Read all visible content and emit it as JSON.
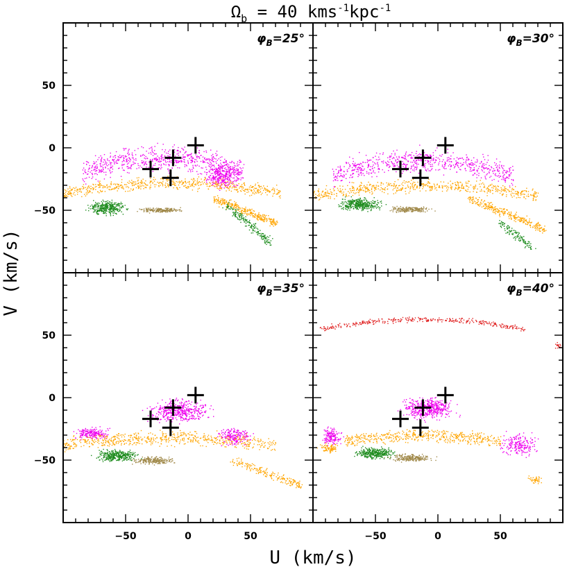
{
  "figure": {
    "title": "Ω_b = 40 kms⁻¹kpc⁻¹",
    "title_main": "Ω",
    "title_sub": "b",
    "title_rest": " = 40  kms",
    "title_sup1": "-1",
    "title_mid": "kpc",
    "title_sup2": "-1",
    "xlabel": "U  (km/s)",
    "ylabel": "V  (km/s)"
  },
  "chart_data": {
    "type": "scatter",
    "layout": "2x2 panels, shared axes",
    "xlim": [
      -100,
      100
    ],
    "ylim": [
      -100,
      100
    ],
    "x_ticks": [
      -50,
      0,
      50
    ],
    "y_ticks": [
      -50,
      0,
      50
    ],
    "x_tick_labels": [
      "−50",
      "0",
      "50"
    ],
    "y_tick_labels": [
      "−50",
      "0",
      "50"
    ],
    "grid": false,
    "colors": {
      "magenta": "#ee00ee",
      "orange": "#ffa500",
      "green": "#1e8c1e",
      "olive": "#a0894a",
      "red": "#e02020",
      "marker": "#000000"
    },
    "observed_groups": [
      {
        "u": 6,
        "v": 2
      },
      {
        "u": -12,
        "v": -8
      },
      {
        "u": -30,
        "v": -17
      },
      {
        "u": -14,
        "v": -24
      }
    ],
    "panels": [
      {
        "label": "φ_B=25°",
        "label_phi": "φ",
        "label_sub": "B",
        "label_rest": "=25°",
        "clusters": [
          {
            "color": "magenta",
            "shape": "arc",
            "u": [
              -85,
              45
            ],
            "v_center": -20,
            "v_half": 14,
            "curve": 12,
            "n": 700
          },
          {
            "color": "magenta",
            "shape": "blob",
            "u": [
              10,
              45
            ],
            "v": [
              -35,
              -10
            ],
            "n": 300
          },
          {
            "color": "orange",
            "shape": "arc",
            "u": [
              -100,
              75
            ],
            "v_center": -36,
            "v_half": 7,
            "curve": 8,
            "n": 600
          },
          {
            "color": "orange",
            "shape": "band",
            "u": [
              20,
              70
            ],
            "v": [
              -60,
              -40
            ],
            "n": 300
          },
          {
            "color": "green",
            "shape": "blob",
            "u": [
              -85,
              -45
            ],
            "v": [
              -55,
              -40
            ],
            "n": 350
          },
          {
            "color": "green",
            "shape": "band",
            "u": [
              30,
              65
            ],
            "v": [
              -75,
              -45
            ],
            "n": 200
          },
          {
            "color": "olive",
            "shape": "blob",
            "u": [
              -45,
              0
            ],
            "v": [
              -52,
              -47
            ],
            "n": 200
          }
        ]
      },
      {
        "label": "φ_B=30°",
        "label_phi": "φ",
        "label_sub": "B",
        "label_rest": "=30°",
        "clusters": [
          {
            "color": "magenta",
            "shape": "arc",
            "u": [
              -85,
              60
            ],
            "v_center": -22,
            "v_half": 13,
            "curve": 12,
            "n": 700
          },
          {
            "color": "orange",
            "shape": "arc",
            "u": [
              -100,
              80
            ],
            "v_center": -38,
            "v_half": 7,
            "curve": 8,
            "n": 600
          },
          {
            "color": "orange",
            "shape": "band",
            "u": [
              25,
              85
            ],
            "v": [
              -65,
              -40
            ],
            "n": 300
          },
          {
            "color": "green",
            "shape": "blob",
            "u": [
              -85,
              -40
            ],
            "v": [
              -52,
              -38
            ],
            "n": 350
          },
          {
            "color": "green",
            "shape": "band",
            "u": [
              50,
              75
            ],
            "v": [
              -80,
              -60
            ],
            "n": 120
          },
          {
            "color": "olive",
            "shape": "blob",
            "u": [
              -45,
              0
            ],
            "v": [
              -52,
              -46
            ],
            "n": 200
          }
        ]
      },
      {
        "label": "φ_B=35°",
        "label_phi": "φ",
        "label_sub": "B",
        "label_rest": "=35°",
        "clusters": [
          {
            "color": "magenta",
            "shape": "blob",
            "u": [
              -40,
              25
            ],
            "v": [
              -22,
              2
            ],
            "n": 450
          },
          {
            "color": "magenta",
            "shape": "blob",
            "u": [
              -95,
              -60
            ],
            "v": [
              -35,
              -22
            ],
            "n": 200
          },
          {
            "color": "magenta",
            "shape": "blob",
            "u": [
              20,
              55
            ],
            "v": [
              -40,
              -22
            ],
            "n": 200
          },
          {
            "color": "orange",
            "shape": "arc",
            "u": [
              -100,
              70
            ],
            "v_center": -38,
            "v_half": 8,
            "curve": 6,
            "n": 600
          },
          {
            "color": "orange",
            "shape": "band",
            "u": [
              35,
              90
            ],
            "v": [
              -70,
              -50
            ],
            "n": 200
          },
          {
            "color": "green",
            "shape": "blob",
            "u": [
              -80,
              -35
            ],
            "v": [
              -52,
              -40
            ],
            "n": 350
          },
          {
            "color": "olive",
            "shape": "blob",
            "u": [
              -50,
              -5
            ],
            "v": [
              -54,
              -46
            ],
            "n": 220
          }
        ]
      },
      {
        "label": "φ_B=40°",
        "label_phi": "φ",
        "label_sub": "B",
        "label_rest": "=40°",
        "clusters": [
          {
            "color": "red",
            "shape": "arc",
            "u": [
              -95,
              70
            ],
            "v_center": 55,
            "v_half": 3,
            "curve": 8,
            "n": 350
          },
          {
            "color": "red",
            "shape": "blob",
            "u": [
              92,
              100
            ],
            "v": [
              38,
              45
            ],
            "n": 20
          },
          {
            "color": "magenta",
            "shape": "blob",
            "u": [
              -35,
              20
            ],
            "v": [
              -20,
              3
            ],
            "n": 450
          },
          {
            "color": "magenta",
            "shape": "blob",
            "u": [
              -95,
              -75
            ],
            "v": [
              -40,
              -22
            ],
            "n": 150
          },
          {
            "color": "magenta",
            "shape": "blob",
            "u": [
              45,
              85
            ],
            "v": [
              -50,
              -25
            ],
            "n": 200
          },
          {
            "color": "orange",
            "shape": "arc",
            "u": [
              -75,
              50
            ],
            "v_center": -35,
            "v_half": 7,
            "curve": 5,
            "n": 500
          },
          {
            "color": "orange",
            "shape": "blob",
            "u": [
              -100,
              -75
            ],
            "v": [
              -45,
              -35
            ],
            "n": 80
          },
          {
            "color": "orange",
            "shape": "blob",
            "u": [
              70,
              85
            ],
            "v": [
              -70,
              -60
            ],
            "n": 40
          },
          {
            "color": "green",
            "shape": "blob",
            "u": [
              -70,
              -30
            ],
            "v": [
              -50,
              -38
            ],
            "n": 350
          },
          {
            "color": "olive",
            "shape": "blob",
            "u": [
              -45,
              0
            ],
            "v": [
              -52,
              -44
            ],
            "n": 220
          }
        ]
      }
    ]
  }
}
